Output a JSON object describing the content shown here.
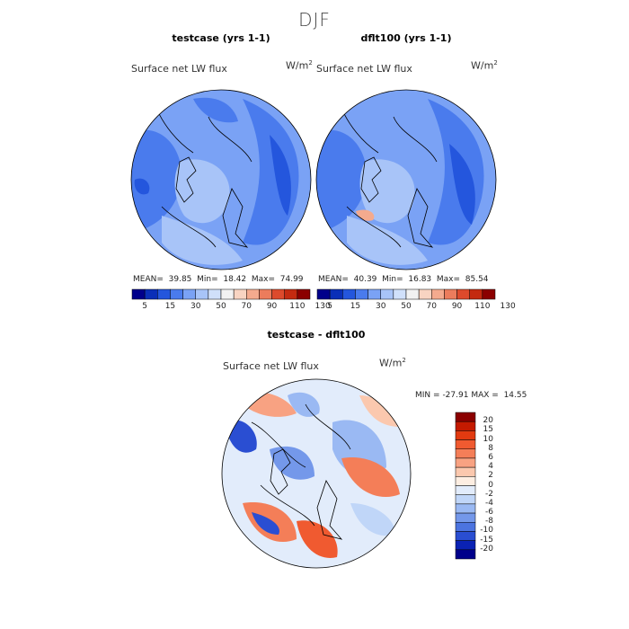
{
  "header": {
    "title": "DJF"
  },
  "panels": [
    {
      "title": "testcase (yrs 1-1)",
      "variable": "Surface net LW flux",
      "unit": "W/m",
      "unit_exp": "2",
      "stats": {
        "mean_label": "MEAN=",
        "mean": "39.85",
        "min_label": "Min=",
        "min": "18.42",
        "max_label": "Max=",
        "max": "74.99"
      }
    },
    {
      "title": "dflt100 (yrs 1-1)",
      "variable": "Surface net LW flux",
      "unit": "W/m",
      "unit_exp": "2",
      "stats": {
        "mean_label": "MEAN=",
        "mean": "40.39",
        "min_label": "Min=",
        "min": "16.83",
        "max_label": "Max=",
        "max": "85.54"
      }
    }
  ],
  "diff_panel": {
    "title": "testcase - dflt100",
    "variable": "Surface net LW flux",
    "unit": "W/m",
    "unit_exp": "2",
    "stats": {
      "min_label": "MIN =",
      "min": "-27.91",
      "max_label": "MAX =",
      "max": "14.55"
    }
  },
  "colorbar_top": {
    "labels": [
      "5",
      "15",
      "30",
      "50",
      "70",
      "90",
      "110",
      "130"
    ],
    "colors": [
      "#00008b",
      "#0a2fb8",
      "#2456dd",
      "#4a7bed",
      "#7aa2f5",
      "#a8c4f8",
      "#d0e0fa",
      "#f2f2f2",
      "#f8d4c2",
      "#f4aa8e",
      "#ec7c5c",
      "#dd4a2c",
      "#c42a10",
      "#8b0000"
    ]
  },
  "colorbar_diff": {
    "labels": [
      "20",
      "15",
      "10",
      "8",
      "6",
      "4",
      "2",
      "0",
      "-2",
      "-4",
      "-6",
      "-8",
      "-10",
      "-15",
      "-20"
    ],
    "colors": [
      "#8b0000",
      "#c41a00",
      "#e23a10",
      "#f05a30",
      "#f47e58",
      "#f8a282",
      "#fbc8ae",
      "#fdeee2",
      "#e2ecfb",
      "#c0d6f8",
      "#9ab9f3",
      "#7498ea",
      "#4c74e0",
      "#2a4ed2",
      "#0a22b4",
      "#00008b"
    ]
  },
  "chart_data": [
    {
      "type": "heatmap",
      "title": "testcase (yrs 1-1)",
      "variable": "Surface net LW flux",
      "units": "W/m2",
      "projection": "north polar stereographic",
      "mean": 39.85,
      "min": 18.42,
      "max": 74.99,
      "contour_levels": [
        5,
        15,
        30,
        50,
        70,
        90,
        110,
        130
      ]
    },
    {
      "type": "heatmap",
      "title": "dflt100 (yrs 1-1)",
      "variable": "Surface net LW flux",
      "units": "W/m2",
      "projection": "north polar stereographic",
      "mean": 40.39,
      "min": 16.83,
      "max": 85.54,
      "contour_levels": [
        5,
        15,
        30,
        50,
        70,
        90,
        110,
        130
      ]
    },
    {
      "type": "heatmap",
      "title": "testcase - dflt100",
      "variable": "Surface net LW flux",
      "units": "W/m2",
      "projection": "north polar stereographic",
      "min": -27.91,
      "max": 14.55,
      "contour_levels": [
        -20,
        -15,
        -10,
        -8,
        -6,
        -4,
        -2,
        0,
        2,
        4,
        6,
        8,
        10,
        15,
        20
      ]
    }
  ]
}
